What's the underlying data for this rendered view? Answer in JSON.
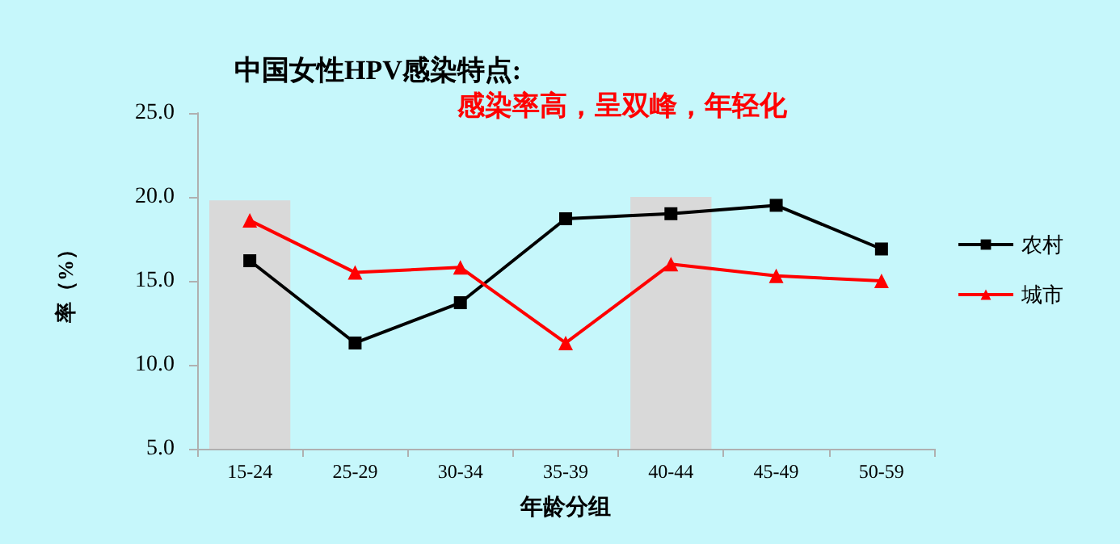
{
  "chart_data": {
    "type": "line",
    "title": "中国女性HPV感染特点:",
    "subtitle": "感染率高，呈双峰，年轻化",
    "xlabel": "年龄分组",
    "ylabel": "率（%）",
    "categories": [
      "15-24",
      "25-29",
      "30-34",
      "35-39",
      "40-44",
      "45-49",
      "50-59"
    ],
    "series": [
      {
        "type": "bar",
        "color": "#d9d9d9",
        "values": [
          19.8,
          null,
          null,
          null,
          20.0,
          null,
          null
        ]
      },
      {
        "name": "农村",
        "color": "#000000",
        "marker": "square",
        "values": [
          16.2,
          11.3,
          13.7,
          18.7,
          19.0,
          19.5,
          16.9
        ]
      },
      {
        "name": "城市",
        "color": "#ff0000",
        "marker": "triangle",
        "values": [
          18.6,
          15.5,
          15.8,
          11.3,
          16.0,
          15.3,
          15.0
        ]
      }
    ],
    "ylim": [
      5,
      25
    ],
    "yticks": [
      {
        "value": 5,
        "label": "5.0"
      },
      {
        "value": 10,
        "label": "10.0"
      },
      {
        "value": 15,
        "label": "15.0"
      },
      {
        "value": 20,
        "label": "20.0"
      },
      {
        "value": 25,
        "label": "25.0"
      }
    ],
    "grid": false,
    "legend": "right",
    "line_style": "solid"
  }
}
